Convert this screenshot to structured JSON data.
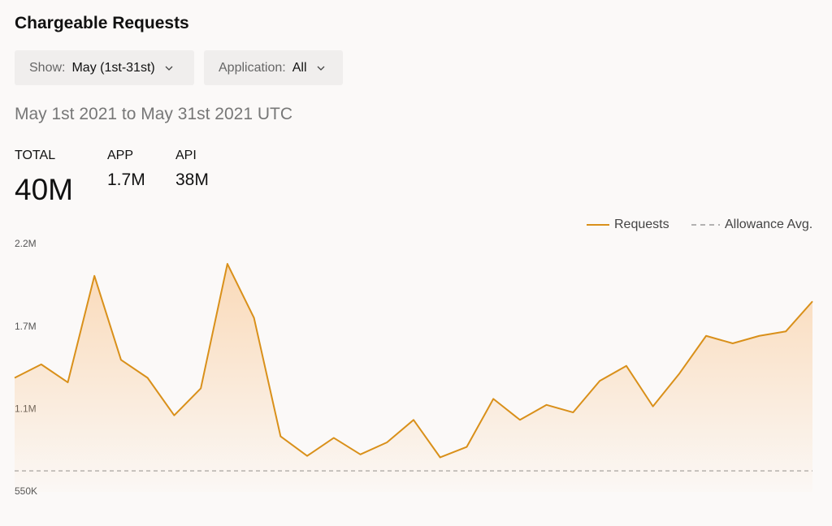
{
  "header": {
    "title": "Chargeable Requests"
  },
  "filters": [
    {
      "label": "Show:",
      "value": "May (1st-31st)"
    },
    {
      "label": "Application:",
      "value": "All"
    }
  ],
  "date_range": "May 1st 2021 to May 31st 2021 UTC",
  "stats": [
    {
      "label": "TOTAL",
      "value": "40M"
    },
    {
      "label": "APP",
      "value": "1.7M"
    },
    {
      "label": "API",
      "value": "38M"
    }
  ],
  "chart_data": {
    "type": "area",
    "series": [
      {
        "name": "Requests",
        "color": "#d9901a",
        "values": [
          1310000,
          1400000,
          1280000,
          1990000,
          1430000,
          1310000,
          1060000,
          1240000,
          2070000,
          1710000,
          920000,
          790000,
          910000,
          800000,
          880000,
          1030000,
          780000,
          850000,
          1170000,
          1030000,
          1130000,
          1080000,
          1290000,
          1390000,
          1120000,
          1340000,
          1590000,
          1540000,
          1590000,
          1620000,
          1820000
        ]
      }
    ],
    "reference_line": {
      "name": "Allowance Avg.",
      "value": 620000,
      "color": "#999999"
    },
    "ylim": [
      550000,
      2200000
    ],
    "yticks": [
      {
        "value": 550000,
        "label": "550K"
      },
      {
        "value": 1100000,
        "label": "1.1M"
      },
      {
        "value": 1650000,
        "label": "1.7M"
      },
      {
        "value": 2200000,
        "label": "2.2M"
      }
    ],
    "grid": false
  }
}
